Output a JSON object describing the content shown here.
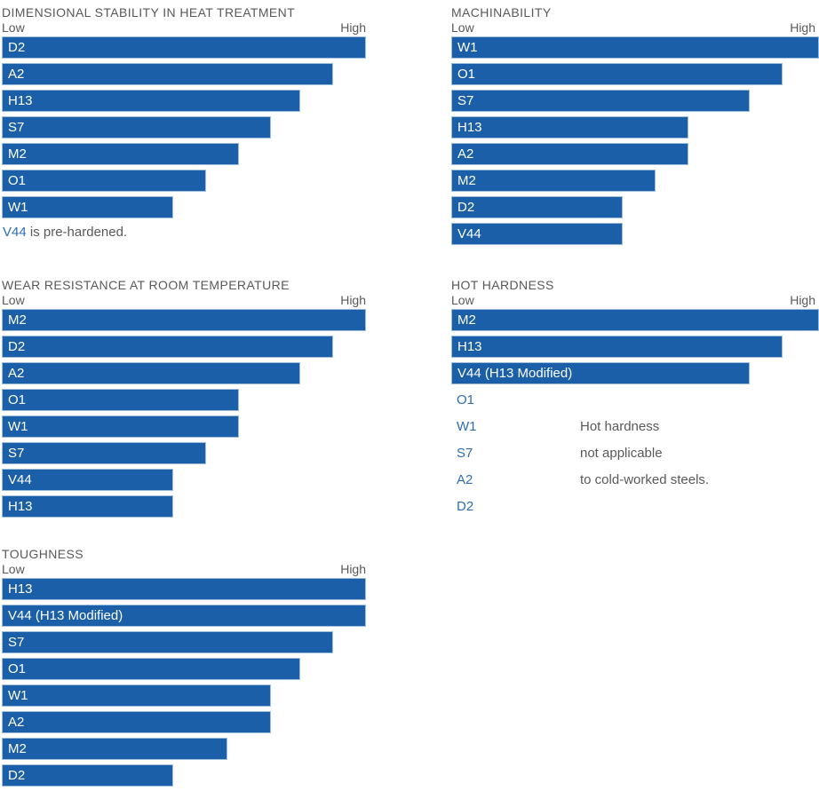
{
  "colors": {
    "bar_fill": "#1A5FA7",
    "bar_edge": "#9FBEDC",
    "text_gray": "#58595B",
    "text_blue": "#2C6DB5",
    "bar_label_text": "#FFFFFF"
  },
  "axis_labels": {
    "low": "Low",
    "high": "High"
  },
  "chart_data": [
    {
      "id": "dimensional-stability",
      "type": "bar",
      "orientation": "horizontal",
      "title": "DIMENSIONAL STABILITY IN HEAT TREATMENT",
      "xlabel": "",
      "ylabel": "",
      "axis": {
        "left_end": "Low",
        "right_end": "High"
      },
      "value_scale": "percent of full-width (qualitative Low to High)",
      "grid": false,
      "column": "left",
      "slot": "top",
      "max_bleeds": false,
      "bars": [
        {
          "label": "D2",
          "value": 100
        },
        {
          "label": "A2",
          "value": 91
        },
        {
          "label": "H13",
          "value": 82
        },
        {
          "label": "S7",
          "value": 74
        },
        {
          "label": "M2",
          "value": 65
        },
        {
          "label": "O1",
          "value": 56
        },
        {
          "label": "W1",
          "value": 47
        }
      ],
      "note": {
        "lead": "V44",
        "rest": " is pre-hardened."
      }
    },
    {
      "id": "machinability",
      "type": "bar",
      "orientation": "horizontal",
      "title": "MACHINABILITY",
      "axis": {
        "left_end": "Low",
        "right_end": "High"
      },
      "value_scale": "percent of full-width (qualitative Low to High)",
      "grid": false,
      "column": "right",
      "slot": "top",
      "max_bleeds": true,
      "bars": [
        {
          "label": "W1",
          "value": 100
        },
        {
          "label": "O1",
          "value": 91
        },
        {
          "label": "S7",
          "value": 82
        },
        {
          "label": "H13",
          "value": 65
        },
        {
          "label": "A2",
          "value": 65
        },
        {
          "label": "M2",
          "value": 56
        },
        {
          "label": "D2",
          "value": 47
        },
        {
          "label": "V44",
          "value": 47
        }
      ]
    },
    {
      "id": "wear-resistance",
      "type": "bar",
      "orientation": "horizontal",
      "title": "WEAR RESISTANCE AT ROOM TEMPERATURE",
      "axis": {
        "left_end": "Low",
        "right_end": "High"
      },
      "value_scale": "percent of full-width (qualitative Low to High)",
      "grid": false,
      "column": "left",
      "slot": "mid",
      "max_bleeds": false,
      "bars": [
        {
          "label": "M2",
          "value": 100
        },
        {
          "label": "D2",
          "value": 91
        },
        {
          "label": "A2",
          "value": 82
        },
        {
          "label": "O1",
          "value": 65
        },
        {
          "label": "W1",
          "value": 65
        },
        {
          "label": "S7",
          "value": 56
        },
        {
          "label": "V44",
          "value": 47
        },
        {
          "label": "H13",
          "value": 47
        }
      ]
    },
    {
      "id": "hot-hardness",
      "type": "bar",
      "orientation": "horizontal",
      "title": "HOT HARDNESS",
      "axis": {
        "left_end": "Low",
        "right_end": "High"
      },
      "value_scale": "percent of full-width (qualitative Low to High)",
      "grid": false,
      "column": "right",
      "slot": "mid",
      "max_bleeds": true,
      "bars": [
        {
          "label": "M2",
          "value": 100
        },
        {
          "label": "H13",
          "value": 91
        },
        {
          "label": "V44 (H13 Modified)",
          "value": 82
        }
      ],
      "steel_rows": [
        {
          "label": "O1",
          "note": ""
        },
        {
          "label": "W1",
          "note": "Hot hardness"
        },
        {
          "label": "S7",
          "note": "not applicable"
        },
        {
          "label": "A2",
          "note": "to cold-worked steels."
        },
        {
          "label": "D2",
          "note": ""
        }
      ]
    },
    {
      "id": "toughness",
      "type": "bar",
      "orientation": "horizontal",
      "title": "TOUGHNESS",
      "axis": {
        "left_end": "Low",
        "right_end": "High"
      },
      "value_scale": "percent of full-width (qualitative Low to High)",
      "grid": false,
      "column": "left",
      "slot": "bot",
      "max_bleeds": false,
      "bars": [
        {
          "label": "H13",
          "value": 100
        },
        {
          "label": "V44 (H13 Modified)",
          "value": 100
        },
        {
          "label": "S7",
          "value": 91
        },
        {
          "label": "O1",
          "value": 82
        },
        {
          "label": "W1",
          "value": 74
        },
        {
          "label": "A2",
          "value": 74
        },
        {
          "label": "M2",
          "value": 62
        },
        {
          "label": "D2",
          "value": 47
        }
      ]
    }
  ]
}
